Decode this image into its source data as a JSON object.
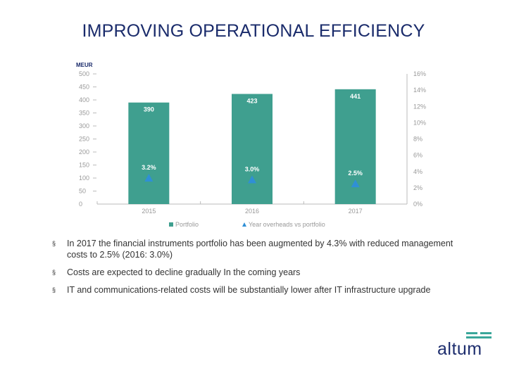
{
  "title": "IMPROVING OPERATIONAL EFFICIENCY",
  "chart_data": {
    "type": "bar",
    "unit_label": "MEUR",
    "categories": [
      "2015",
      "2016",
      "2017"
    ],
    "series": [
      {
        "name": "Portfolio",
        "values": [
          390,
          423,
          441
        ],
        "labels": [
          "390",
          "423",
          "441"
        ],
        "color": "#3f9f8f",
        "axis": "left"
      },
      {
        "name": "Year overheads vs portfolio",
        "values": [
          3.2,
          3.0,
          2.5
        ],
        "labels": [
          "3.2%",
          "3.0%",
          "2.5%"
        ],
        "color": "#2f8fd6",
        "axis": "right",
        "marker": "triangle"
      }
    ],
    "y_left": {
      "min": 0,
      "max": 500,
      "ticks": [
        "0",
        "50",
        "100",
        "150",
        "200",
        "250",
        "300",
        "350",
        "400",
        "450",
        "500"
      ]
    },
    "y_right": {
      "min": 0,
      "max": 16,
      "ticks": [
        "0%",
        "2%",
        "4%",
        "6%",
        "8%",
        "10%",
        "12%",
        "14%",
        "16%"
      ]
    },
    "legend_position": "bottom"
  },
  "bullets": [
    "In 2017 the financial instruments portfolio has been augmented by 4.3% with reduced management costs to 2.5% (2016: 3.0%)",
    "Costs are expected to decline gradually In the coming years",
    "IT and communications-related costs will be substantially lower after IT infrastructure upgrade"
  ],
  "bullet_marker": "§",
  "logo": {
    "text": "altum",
    "color": "#1e2e6e",
    "accent": "#3aa79a"
  }
}
